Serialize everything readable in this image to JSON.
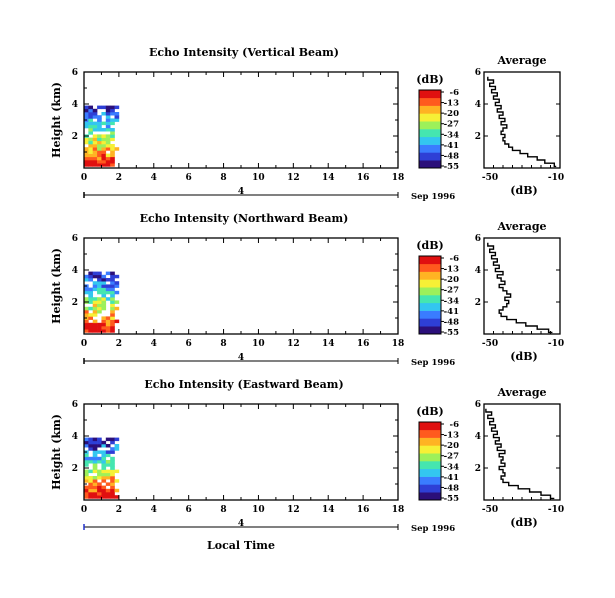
{
  "figure": {
    "x_axis_label": "Local Time",
    "date_label": "Sep 1996",
    "day_marker": "4"
  },
  "colorbar": {
    "unit": "(dB)",
    "ticks": [
      "-6",
      "-13",
      "-20",
      "-27",
      "-34",
      "-41",
      "-48",
      "-55"
    ],
    "colors": [
      "#2b0f7a",
      "#2e3fd6",
      "#3a7cff",
      "#33c6f0",
      "#45e6b0",
      "#9df05a",
      "#f6f036",
      "#ffb323",
      "#ff5a1e",
      "#e01010"
    ]
  },
  "chart_data": [
    {
      "type": "heatmap",
      "title": "Echo Intensity (Vertical Beam)",
      "xlabel": "Local Time",
      "ylabel": "Height (km)",
      "xlim": [
        0,
        18
      ],
      "ylim": [
        0,
        6
      ],
      "xticks": [
        0,
        2,
        4,
        6,
        8,
        10,
        12,
        14,
        16,
        18
      ],
      "yticks": [
        2,
        4,
        6
      ],
      "data_extent_x": [
        0,
        2
      ],
      "data_extent_y": [
        0.1,
        3.9
      ],
      "color_range_db": [
        -55,
        -6
      ],
      "average_profile": {
        "title": "Average",
        "xlabel": "(dB)",
        "xlim": [
          -50,
          -10
        ],
        "ylim": [
          0,
          6
        ],
        "xticks": [
          -50,
          -10
        ],
        "yticks": [
          2,
          4,
          6
        ],
        "height_km": [
          0.1,
          0.3,
          0.5,
          0.7,
          0.9,
          1.1,
          1.3,
          1.5,
          1.7,
          1.9,
          2.1,
          2.3,
          2.5,
          2.7,
          2.9,
          3.1,
          3.3,
          3.5,
          3.7,
          3.9,
          4.1,
          4.3,
          4.5,
          4.7,
          4.9,
          5.1,
          5.3,
          5.5,
          5.7
        ],
        "db": [
          -12,
          -13,
          -18,
          -22,
          -27,
          -31,
          -35,
          -37,
          -39,
          -40,
          -39,
          -41,
          -40,
          -38,
          -41,
          -39,
          -42,
          -40,
          -43,
          -41,
          -44,
          -42,
          -45,
          -43,
          -46,
          -44,
          -47,
          -45,
          -48
        ]
      }
    },
    {
      "type": "heatmap",
      "title": "Echo Intensity (Northward Beam)",
      "xlabel": "Local Time",
      "ylabel": "Height (km)",
      "xlim": [
        0,
        18
      ],
      "ylim": [
        0,
        6
      ],
      "xticks": [
        0,
        2,
        4,
        6,
        8,
        10,
        12,
        14,
        16,
        18
      ],
      "yticks": [
        2,
        4,
        6
      ],
      "data_extent_x": [
        0,
        2
      ],
      "data_extent_y": [
        0.1,
        3.8
      ],
      "color_range_db": [
        -55,
        -6
      ],
      "average_profile": {
        "title": "Average",
        "xlabel": "(dB)",
        "xlim": [
          -50,
          -10
        ],
        "ylim": [
          0,
          6
        ],
        "xticks": [
          -50,
          -10
        ],
        "yticks": [
          2,
          4,
          6
        ],
        "height_km": [
          0.1,
          0.3,
          0.5,
          0.7,
          0.9,
          1.1,
          1.3,
          1.5,
          1.7,
          1.9,
          2.1,
          2.3,
          2.5,
          2.7,
          2.9,
          3.1,
          3.3,
          3.5,
          3.7,
          3.9,
          4.1,
          4.3,
          4.5,
          4.7,
          4.9,
          5.1,
          5.3,
          5.5,
          5.7
        ],
        "db": [
          -14,
          -16,
          -22,
          -28,
          -33,
          -38,
          -41,
          -42,
          -40,
          -38,
          -37,
          -39,
          -36,
          -38,
          -40,
          -42,
          -39,
          -41,
          -43,
          -40,
          -44,
          -42,
          -45,
          -43,
          -46,
          -44,
          -47,
          -45,
          -48
        ]
      }
    },
    {
      "type": "heatmap",
      "title": "Echo Intensity (Eastward Beam)",
      "xlabel": "Local Time",
      "ylabel": "Height (km)",
      "xlim": [
        0,
        18
      ],
      "ylim": [
        0,
        6
      ],
      "xticks": [
        0,
        2,
        4,
        6,
        8,
        10,
        12,
        14,
        16,
        18
      ],
      "yticks": [
        2,
        4,
        6
      ],
      "data_extent_x": [
        0,
        2
      ],
      "data_extent_y": [
        0.1,
        3.9
      ],
      "color_range_db": [
        -55,
        -6
      ],
      "average_profile": {
        "title": "Average",
        "xlabel": "(dB)",
        "xlim": [
          -50,
          -10
        ],
        "ylim": [
          0,
          6
        ],
        "xticks": [
          -50,
          -10
        ],
        "yticks": [
          2,
          4,
          6
        ],
        "height_km": [
          0.1,
          0.3,
          0.5,
          0.7,
          0.9,
          1.1,
          1.3,
          1.5,
          1.7,
          1.9,
          2.1,
          2.3,
          2.5,
          2.7,
          2.9,
          3.1,
          3.3,
          3.5,
          3.7,
          3.9,
          4.1,
          4.3,
          4.5,
          4.7,
          4.9,
          5.1,
          5.3,
          5.5,
          5.7
        ],
        "db": [
          -13,
          -15,
          -20,
          -26,
          -32,
          -37,
          -40,
          -41,
          -39,
          -40,
          -42,
          -39,
          -41,
          -40,
          -42,
          -39,
          -43,
          -41,
          -44,
          -42,
          -45,
          -43,
          -46,
          -44,
          -47,
          -45,
          -48,
          -46,
          -49
        ]
      }
    }
  ]
}
